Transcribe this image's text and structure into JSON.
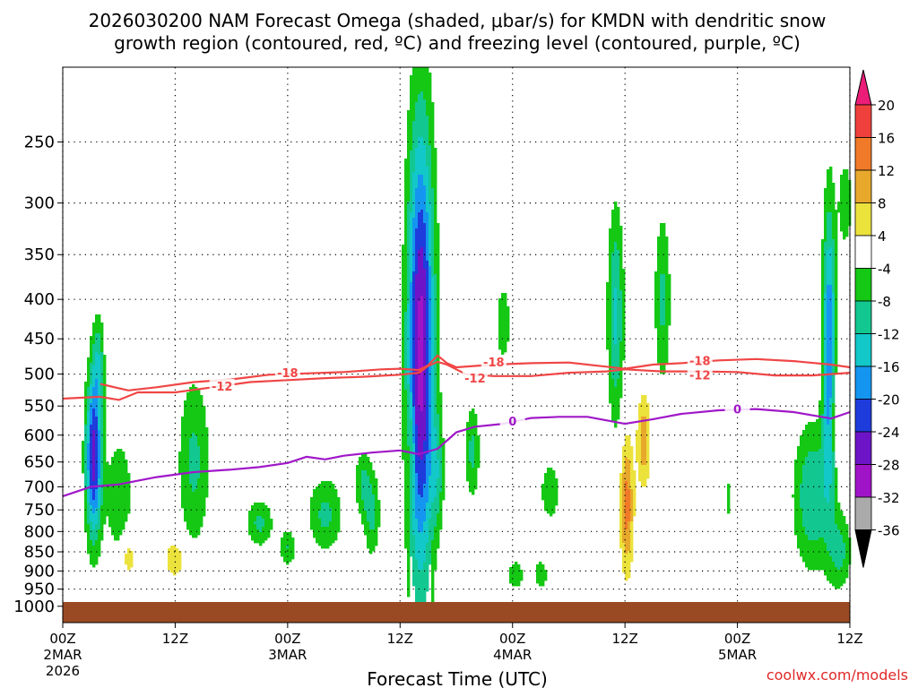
{
  "chart_data": {
    "type": "heatmap",
    "title_line1": "2026030200 NAM Forecast Omega (shaded, μbar/s) for KMDN with dendritic snow",
    "title_line2": "growth region (contoured, red, ºC) and freezing level (contoured, purple, ºC)",
    "xlabel": "Forecast Time (UTC)",
    "ylabel": "",
    "credit": "coolwx.com/models",
    "x_range_hours": [
      0,
      84
    ],
    "y_axis": {
      "type": "log-pressure",
      "range": [
        1050,
        200
      ],
      "unit": "hPa"
    },
    "y_ticks": [
      "250",
      "300",
      "350",
      "400",
      "450",
      "500",
      "550",
      "600",
      "650",
      "700",
      "750",
      "800",
      "850",
      "900",
      "950",
      "1000"
    ],
    "y_tick_values": [
      250,
      300,
      350,
      400,
      450,
      500,
      550,
      600,
      650,
      700,
      750,
      800,
      850,
      900,
      950,
      1000
    ],
    "x_ticks": [
      {
        "hour": 0,
        "l1": "00Z",
        "l2": "2MAR",
        "l3": "2026"
      },
      {
        "hour": 12,
        "l1": "12Z",
        "l2": "",
        "l3": ""
      },
      {
        "hour": 24,
        "l1": "00Z",
        "l2": "3MAR",
        "l3": ""
      },
      {
        "hour": 36,
        "l1": "12Z",
        "l2": "",
        "l3": ""
      },
      {
        "hour": 48,
        "l1": "00Z",
        "l2": "4MAR",
        "l3": ""
      },
      {
        "hour": 60,
        "l1": "12Z",
        "l2": "",
        "l3": ""
      },
      {
        "hour": 72,
        "l1": "00Z",
        "l2": "5MAR",
        "l3": ""
      },
      {
        "hour": 84,
        "l1": "12Z",
        "l2": "",
        "l3": ""
      }
    ],
    "colorbar": {
      "labels": [
        "20",
        "16",
        "12",
        "8",
        "4",
        "-4",
        "-8",
        "-12",
        "-16",
        "-20",
        "-24",
        "-28",
        "-32",
        "-36"
      ],
      "colors": [
        "#ec1d78",
        "#f0403c",
        "#f07a28",
        "#e8a82c",
        "#ece23c",
        "#ffffff",
        "#14c814",
        "#12c890",
        "#12c8c8",
        "#1496f0",
        "#1e3cdc",
        "#6e14c8",
        "#a014c8",
        "#aaaaaa",
        "#000000"
      ]
    },
    "terrain_color": "#9a4a22",
    "contours": [
      {
        "name": "dgz-minus18",
        "color": "#f04646",
        "label": "-18",
        "points": [
          [
            4,
            515
          ],
          [
            7,
            525
          ],
          [
            10,
            520
          ],
          [
            14,
            512
          ],
          [
            18,
            508
          ],
          [
            22,
            501
          ],
          [
            26,
            499
          ],
          [
            30,
            497
          ],
          [
            34,
            493
          ],
          [
            36,
            492
          ],
          [
            38,
            494
          ],
          [
            39,
            487
          ],
          [
            40,
            473
          ],
          [
            41,
            484
          ],
          [
            42,
            490
          ],
          [
            46,
            486
          ],
          [
            50,
            484
          ],
          [
            54,
            483
          ],
          [
            58,
            489
          ],
          [
            60,
            492
          ],
          [
            63,
            486
          ],
          [
            66,
            484
          ],
          [
            70,
            480
          ],
          [
            74,
            478
          ],
          [
            78,
            481
          ],
          [
            82,
            486
          ],
          [
            84,
            490
          ]
        ],
        "label_pos": [
          [
            24,
            498
          ],
          [
            46,
            482
          ],
          [
            68,
            480
          ]
        ]
      },
      {
        "name": "dgz-minus12",
        "color": "#f04646",
        "label": "-12",
        "points": [
          [
            0,
            538
          ],
          [
            4,
            535
          ],
          [
            6,
            540
          ],
          [
            8,
            528
          ],
          [
            12,
            528
          ],
          [
            16,
            520
          ],
          [
            20,
            512
          ],
          [
            24,
            509
          ],
          [
            28,
            506
          ],
          [
            32,
            504
          ],
          [
            36,
            501
          ],
          [
            38,
            498
          ],
          [
            39,
            488
          ],
          [
            40,
            482
          ],
          [
            41,
            486
          ],
          [
            43,
            500
          ],
          [
            46,
            503
          ],
          [
            50,
            503
          ],
          [
            54,
            498
          ],
          [
            58,
            496
          ],
          [
            60,
            493
          ],
          [
            64,
            496
          ],
          [
            68,
            496
          ],
          [
            72,
            497
          ],
          [
            76,
            502
          ],
          [
            80,
            502
          ],
          [
            84,
            498
          ]
        ],
        "label_pos": [
          [
            17,
            518
          ],
          [
            44,
            506
          ],
          [
            68,
            501
          ]
        ]
      },
      {
        "name": "freezing-level-0",
        "color": "#a018c8",
        "label": "0",
        "points": [
          [
            0,
            720
          ],
          [
            3,
            700
          ],
          [
            6,
            695
          ],
          [
            10,
            680
          ],
          [
            14,
            670
          ],
          [
            18,
            665
          ],
          [
            21,
            660
          ],
          [
            24,
            652
          ],
          [
            26,
            640
          ],
          [
            28,
            645
          ],
          [
            30,
            638
          ],
          [
            33,
            632
          ],
          [
            36,
            628
          ],
          [
            38,
            635
          ],
          [
            40,
            625
          ],
          [
            42,
            595
          ],
          [
            44,
            585
          ],
          [
            47,
            580
          ],
          [
            50,
            570
          ],
          [
            53,
            568
          ],
          [
            56,
            568
          ],
          [
            60,
            580
          ],
          [
            63,
            572
          ],
          [
            66,
            563
          ],
          [
            70,
            557
          ],
          [
            74,
            555
          ],
          [
            78,
            560
          ],
          [
            82,
            571
          ],
          [
            84,
            560
          ]
        ],
        "label_pos": [
          [
            48,
            575
          ],
          [
            72,
            555
          ]
        ]
      }
    ],
    "omega_cells": [
      {
        "t": 3.3,
        "p": 640,
        "sigma_t": 0.6,
        "sigma_lnp": 0.17,
        "amp": -26
      },
      {
        "t": 3.8,
        "p": 480,
        "sigma_t": 0.45,
        "sigma_lnp": 0.1,
        "amp": -9
      },
      {
        "t": 6.0,
        "p": 720,
        "sigma_t": 1.0,
        "sigma_lnp": 0.12,
        "amp": -8
      },
      {
        "t": 7.0,
        "p": 860,
        "sigma_t": 0.5,
        "sigma_lnp": 0.05,
        "amp": 7
      },
      {
        "t": 12.0,
        "p": 870,
        "sigma_t": 0.8,
        "sigma_lnp": 0.04,
        "amp": 8
      },
      {
        "t": 14.0,
        "p": 650,
        "sigma_t": 1.2,
        "sigma_lnp": 0.18,
        "amp": -9
      },
      {
        "t": 21.0,
        "p": 780,
        "sigma_t": 1.0,
        "sigma_lnp": 0.05,
        "amp": -9
      },
      {
        "t": 24.0,
        "p": 840,
        "sigma_t": 0.6,
        "sigma_lnp": 0.04,
        "amp": -8
      },
      {
        "t": 28.0,
        "p": 760,
        "sigma_t": 1.3,
        "sigma_lnp": 0.08,
        "amp": -9
      },
      {
        "t": 32.0,
        "p": 690,
        "sigma_t": 0.6,
        "sigma_lnp": 0.07,
        "amp": -8
      },
      {
        "t": 33.0,
        "p": 760,
        "sigma_t": 0.6,
        "sigma_lnp": 0.09,
        "amp": -9
      },
      {
        "t": 37.2,
        "p": 620,
        "sigma_t": 0.25,
        "sigma_lnp": 0.09,
        "amp": 6
      },
      {
        "t": 38.2,
        "p": 470,
        "sigma_t": 1.0,
        "sigma_lnp": 0.48,
        "amp": -30
      },
      {
        "t": 40.0,
        "p": 670,
        "sigma_t": 0.5,
        "sigma_lnp": 0.12,
        "amp": -8
      },
      {
        "t": 43.7,
        "p": 630,
        "sigma_t": 0.55,
        "sigma_lnp": 0.1,
        "amp": -9
      },
      {
        "t": 47.0,
        "p": 430,
        "sigma_t": 0.5,
        "sigma_lnp": 0.08,
        "amp": -8
      },
      {
        "t": 48.3,
        "p": 910,
        "sigma_t": 0.6,
        "sigma_lnp": 0.03,
        "amp": -8
      },
      {
        "t": 51.0,
        "p": 910,
        "sigma_t": 0.5,
        "sigma_lnp": 0.03,
        "amp": -8
      },
      {
        "t": 52.0,
        "p": 710,
        "sigma_t": 0.7,
        "sigma_lnp": 0.06,
        "amp": -8
      },
      {
        "t": 59.0,
        "p": 420,
        "sigma_t": 0.6,
        "sigma_lnp": 0.22,
        "amp": -13
      },
      {
        "t": 60.2,
        "p": 740,
        "sigma_t": 0.5,
        "sigma_lnp": 0.14,
        "amp": 14
      },
      {
        "t": 62.0,
        "p": 610,
        "sigma_t": 0.5,
        "sigma_lnp": 0.1,
        "amp": 11
      },
      {
        "t": 64.0,
        "p": 400,
        "sigma_t": 0.6,
        "sigma_lnp": 0.18,
        "amp": -9
      },
      {
        "t": 71.0,
        "p": 725,
        "sigma_t": 0.2,
        "sigma_lnp": 0.04,
        "amp": -8
      },
      {
        "t": 80.0,
        "p": 720,
        "sigma_t": 1.4,
        "sigma_lnp": 0.15,
        "amp": -12
      },
      {
        "t": 81.8,
        "p": 460,
        "sigma_t": 0.5,
        "sigma_lnp": 0.3,
        "amp": -20
      },
      {
        "t": 82.5,
        "p": 560,
        "sigma_t": 0.35,
        "sigma_lnp": 0.1,
        "amp": 6
      },
      {
        "t": 83.5,
        "p": 300,
        "sigma_t": 0.5,
        "sigma_lnp": 0.09,
        "amp": -8
      },
      {
        "t": 83.0,
        "p": 850,
        "sigma_t": 0.8,
        "sigma_lnp": 0.08,
        "amp": -9
      }
    ]
  }
}
